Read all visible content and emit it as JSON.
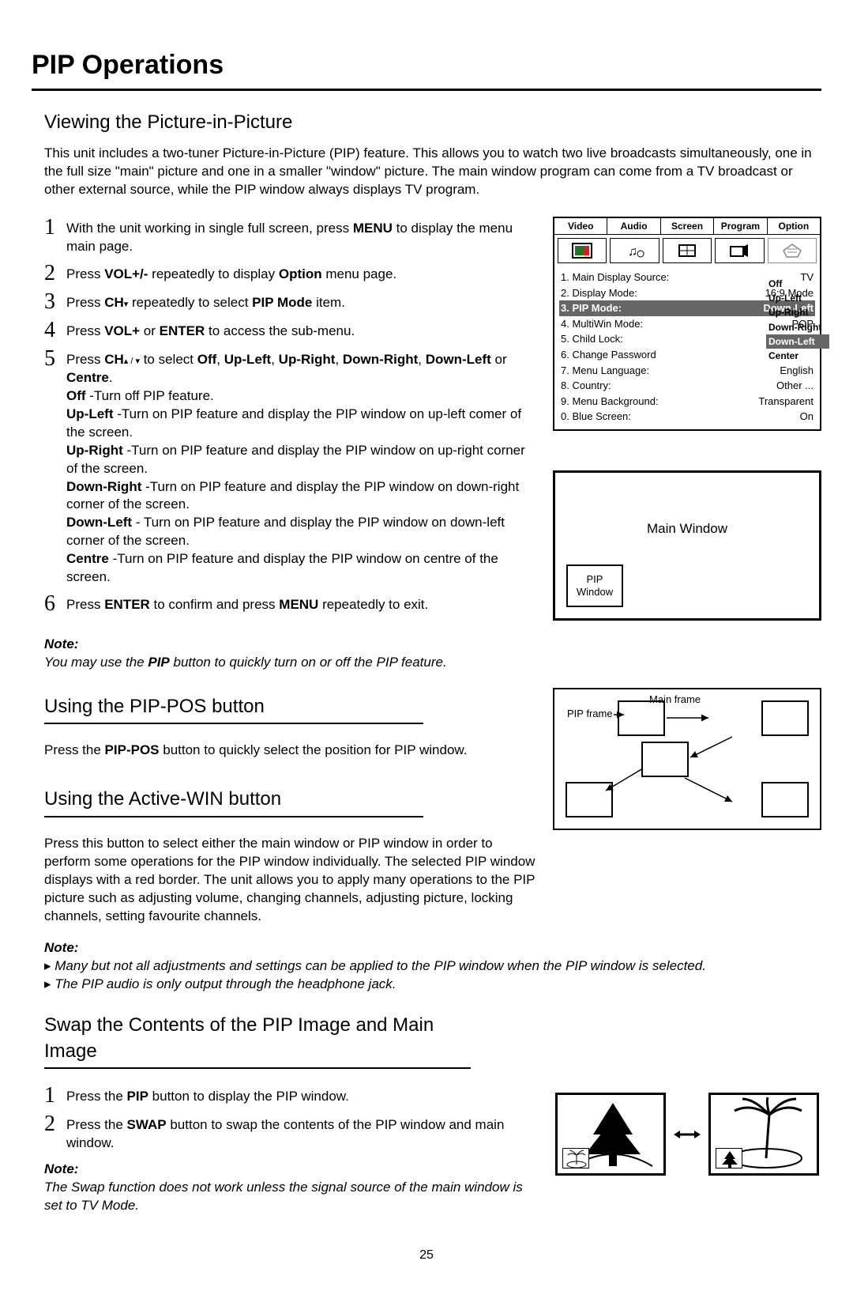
{
  "page_title": "PIP Operations",
  "page_number": "25",
  "viewing": {
    "title": "Viewing the Picture-in-Picture",
    "intro": "This unit includes a two-tuner Picture-in-Picture (PIP) feature. This allows you to watch two live broadcasts simultaneously, one in the full size \"main\" picture and one in a smaller \"window\" picture. The main window program can come from a TV broadcast or other external source, while the PIP window always displays TV program.",
    "steps": {
      "s1a": "With the unit working in single full screen, press ",
      "s1b": "MENU",
      "s1c": " to display the menu main page.",
      "s2a": "Press ",
      "s2b": "VOL+/-",
      "s2c": " repeatedly to display ",
      "s2d": "Option",
      "s2e": " menu page.",
      "s3a": "Press ",
      "s3b": "CH",
      "s3c": " repeatedly to select ",
      "s3d": "PIP Mode",
      "s3e": " item.",
      "s4a": "Press ",
      "s4b": "VOL+",
      "s4c": " or ",
      "s4d": "ENTER",
      "s4e": " to access the sub-menu.",
      "s5a": "Press ",
      "s5b": "CH",
      "s5c": " to select ",
      "s5d": "Off",
      "s5e": "Up-Left",
      "s5f": "Up-Right",
      "s5g": "Down-Right",
      "s5h": "Down-Left",
      "s5i": "Centre",
      "s5_off": "Off",
      "s5_off_d": " -Turn off PIP feature.",
      "s5_ul": "Up-Left",
      "s5_ul_d": " -Turn on PIP feature and display the PIP window on up-left comer of the screen.",
      "s5_ur": "Up-Right",
      "s5_ur_d": " -Turn on PIP feature and display the PIP window on up-right corner of the screen.",
      "s5_dr": "Down-Right",
      "s5_dr_d": " -Turn on PIP feature and display the PIP window on down-right corner of the screen.",
      "s5_dl": "Down-Left",
      "s5_dl_d": " - Turn on PIP feature and display the PIP window on down-left corner of the screen.",
      "s5_c": "Centre",
      "s5_c_d": " -Turn on PIP feature and display the PIP window on centre of the screen.",
      "s6a": "Press ",
      "s6b": "ENTER",
      "s6c": " to confirm and press ",
      "s6d": "MENU",
      "s6e": " repeatedly to exit."
    },
    "note_label": "Note:",
    "note_a": "You may use the ",
    "note_b": "PIP",
    "note_c": " button to quickly turn on or off the PIP feature."
  },
  "menu": {
    "tabs": [
      "Video",
      "Audio",
      "Screen",
      "Program",
      "Option"
    ],
    "items": [
      {
        "l": "1. Main Display Source:",
        "r": "TV"
      },
      {
        "l": "2. Display Mode:",
        "r": "16:9 Mode"
      },
      {
        "l": "3. PIP Mode:",
        "r": "Down-Left",
        "sel": true
      },
      {
        "l": "4. MultiWin Mode:",
        "r": "POP"
      },
      {
        "l": "5. Child Lock:",
        "r": "Off"
      },
      {
        "l": "6. Change Password",
        "r": ""
      },
      {
        "l": "7. Menu Language:",
        "r": "English"
      },
      {
        "l": "8. Country:",
        "r": "Other ..."
      },
      {
        "l": "9. Menu Background:",
        "r": "Transparent"
      },
      {
        "l": "0. Blue Screen:",
        "r": "On"
      }
    ],
    "submenu": [
      "Off",
      "Up-Left",
      "Up-Right",
      "Down-Right",
      "Down-Left",
      "Center"
    ],
    "submenu_sel": 4
  },
  "main_window_label": "Main Window",
  "pip_window_label": "PIP Window",
  "pippos": {
    "title": "Using the PIP-POS button",
    "body_a": "Press the ",
    "body_b": "PIP-POS",
    "body_c": " button to quickly select the position for PIP window.",
    "main_frame": "Main frame",
    "pip_frame": "PIP frame"
  },
  "activewin": {
    "title": "Using the Active-WIN button",
    "body": "Press this button to select either the main window or PIP window in order to perform some operations for the PIP window individually. The selected PIP window displays with a red border. The unit allows you to apply many operations to the PIP picture such as adjusting volume, changing channels, adjusting picture, locking channels, setting favourite channels.",
    "note_label": "Note:",
    "note1": "Many but not all adjustments and settings can be applied to the PIP window when the PIP window is selected.",
    "note2": "The PIP audio is only output through the headphone jack."
  },
  "swap": {
    "title": "Swap the Contents of the PIP Image and Main Image",
    "s1a": "Press the ",
    "s1b": "PIP",
    "s1c": " button to display the PIP window.",
    "s2a": "Press the ",
    "s2b": "SWAP",
    "s2c": " button to swap the contents of the PIP window and main window.",
    "note_label": "Note:",
    "note": "The Swap function does not work unless the signal source of the main window is set to TV Mode."
  }
}
